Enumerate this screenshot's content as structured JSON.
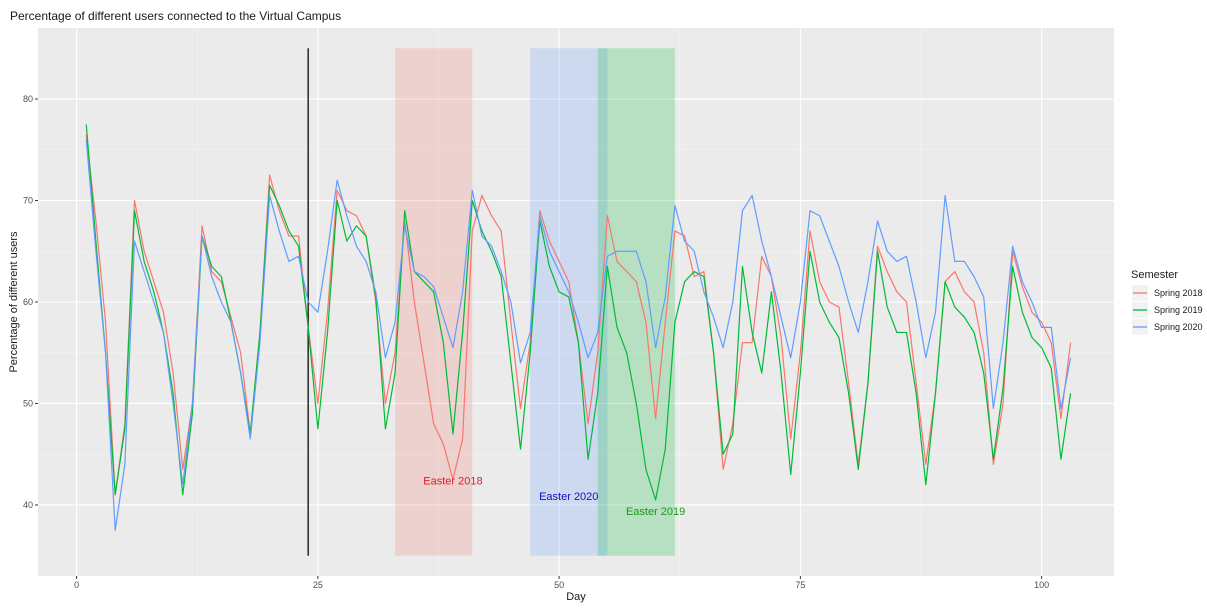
{
  "chart_data": {
    "type": "line",
    "title": "Percentage of different users connected to the Virtual Campus",
    "xlabel": "Day",
    "ylabel": "Percentage of different users",
    "xlim": [
      -4,
      107.5
    ],
    "ylim": [
      33,
      87
    ],
    "x_ticks": [
      0,
      25,
      50,
      75,
      100
    ],
    "y_ticks": [
      40,
      50,
      60,
      70,
      80
    ],
    "grid": true,
    "legend_position": "right",
    "legend_title": "Semester",
    "vline": {
      "x": 24,
      "y_range": [
        35,
        85
      ],
      "color": "#333333"
    },
    "shaded_regions": [
      {
        "x_range": [
          33,
          41
        ],
        "y_range": [
          35,
          85
        ],
        "color": "#F8766D",
        "label": "Easter 2018",
        "label_x": 39,
        "label_y": 42
      },
      {
        "x_range": [
          47,
          55
        ],
        "y_range": [
          35,
          85
        ],
        "color": "#619CFF",
        "label": "Easter 2020",
        "label_x": 51,
        "label_y": 40.5
      },
      {
        "x_range": [
          54,
          62
        ],
        "y_range": [
          35,
          85
        ],
        "color": "#00BA38",
        "label": "Easter 2019",
        "label_x": 60,
        "label_y": 39
      }
    ],
    "annotation_colors": {
      "Easter 2018": "#E41A1C",
      "Easter 2020": "#1010CC",
      "Easter 2019": "#1A9A1A"
    },
    "series": [
      {
        "name": "Spring 2018",
        "color": "#F8766D",
        "points": [
          [
            1,
            76.5
          ],
          [
            2,
            68
          ],
          [
            3,
            58
          ],
          [
            4,
            41
          ],
          [
            5,
            48
          ],
          [
            6,
            70
          ],
          [
            7,
            65
          ],
          [
            8,
            62
          ],
          [
            9,
            59
          ],
          [
            10,
            53
          ],
          [
            11,
            43.5
          ],
          [
            12,
            50
          ],
          [
            13,
            67.5
          ],
          [
            14,
            63
          ],
          [
            15,
            62
          ],
          [
            16,
            58.5
          ],
          [
            17,
            55
          ],
          [
            18,
            47
          ],
          [
            19,
            57
          ],
          [
            20,
            72.5
          ],
          [
            21,
            69
          ],
          [
            22,
            66.5
          ],
          [
            23,
            66.5
          ],
          [
            24,
            57.5
          ],
          [
            25,
            50
          ],
          [
            26,
            59
          ],
          [
            27,
            71
          ],
          [
            28,
            69
          ],
          [
            29,
            68.5
          ],
          [
            30,
            66.5
          ],
          [
            31,
            60
          ],
          [
            32,
            50
          ],
          [
            33,
            55
          ],
          [
            34,
            68
          ],
          [
            35,
            60
          ],
          [
            36,
            54
          ],
          [
            37,
            48
          ],
          [
            38,
            46
          ],
          [
            39,
            42.5
          ],
          [
            40,
            46.5
          ],
          [
            41,
            67
          ],
          [
            42,
            70.5
          ],
          [
            43,
            68.5
          ],
          [
            44,
            67
          ],
          [
            45,
            58
          ],
          [
            46,
            49.5
          ],
          [
            47,
            56
          ],
          [
            48,
            69
          ],
          [
            49,
            66
          ],
          [
            50,
            64
          ],
          [
            51,
            62
          ],
          [
            52,
            56
          ],
          [
            53,
            48
          ],
          [
            54,
            55
          ],
          [
            55,
            68.5
          ],
          [
            56,
            64
          ],
          [
            57,
            63
          ],
          [
            58,
            62
          ],
          [
            59,
            58
          ],
          [
            60,
            48.5
          ],
          [
            61,
            58
          ],
          [
            62,
            67
          ],
          [
            63,
            66.5
          ],
          [
            64,
            62.5
          ],
          [
            65,
            63
          ],
          [
            66,
            55
          ],
          [
            67,
            43.5
          ],
          [
            68,
            48
          ],
          [
            69,
            56
          ],
          [
            70,
            56
          ],
          [
            71,
            64.5
          ],
          [
            72,
            62.5
          ],
          [
            73,
            56.5
          ],
          [
            74,
            46.5
          ],
          [
            75,
            55
          ],
          [
            76,
            67
          ],
          [
            77,
            62
          ],
          [
            78,
            60
          ],
          [
            79,
            59.5
          ],
          [
            80,
            52
          ],
          [
            81,
            44
          ],
          [
            82,
            52
          ],
          [
            83,
            65.5
          ],
          [
            84,
            63
          ],
          [
            85,
            61
          ],
          [
            86,
            60
          ],
          [
            87,
            52
          ],
          [
            88,
            44
          ],
          [
            89,
            51
          ],
          [
            90,
            62
          ],
          [
            91,
            63
          ],
          [
            92,
            61
          ],
          [
            93,
            60
          ],
          [
            94,
            55
          ],
          [
            95,
            44
          ],
          [
            96,
            50
          ],
          [
            97,
            65
          ],
          [
            98,
            61.5
          ],
          [
            99,
            59
          ],
          [
            100,
            58
          ],
          [
            101,
            56
          ],
          [
            102,
            48.5
          ],
          [
            103,
            56
          ]
        ]
      },
      {
        "name": "Spring 2019",
        "color": "#00BA38",
        "points": [
          [
            1,
            77.5
          ],
          [
            2,
            66
          ],
          [
            3,
            55
          ],
          [
            4,
            41
          ],
          [
            5,
            47.5
          ],
          [
            6,
            69
          ],
          [
            7,
            64
          ],
          [
            8,
            61
          ],
          [
            9,
            57
          ],
          [
            10,
            51
          ],
          [
            11,
            41
          ],
          [
            12,
            49
          ],
          [
            13,
            66.5
          ],
          [
            14,
            63.5
          ],
          [
            15,
            62.5
          ],
          [
            16,
            58
          ],
          [
            17,
            53
          ],
          [
            18,
            47
          ],
          [
            19,
            57
          ],
          [
            20,
            71.5
          ],
          [
            21,
            69.5
          ],
          [
            22,
            67
          ],
          [
            23,
            65.5
          ],
          [
            24,
            57.5
          ],
          [
            25,
            47.5
          ],
          [
            26,
            57
          ],
          [
            27,
            70
          ],
          [
            28,
            66
          ],
          [
            29,
            67.5
          ],
          [
            30,
            66.5
          ],
          [
            31,
            60.5
          ],
          [
            32,
            47.5
          ],
          [
            33,
            53
          ],
          [
            34,
            69
          ],
          [
            35,
            63
          ],
          [
            36,
            62
          ],
          [
            37,
            61
          ],
          [
            38,
            56
          ],
          [
            39,
            47
          ],
          [
            40,
            57
          ],
          [
            41,
            70
          ],
          [
            42,
            67
          ],
          [
            43,
            65
          ],
          [
            44,
            62.5
          ],
          [
            45,
            54
          ],
          [
            46,
            45.5
          ],
          [
            47,
            55
          ],
          [
            48,
            68
          ],
          [
            49,
            63.5
          ],
          [
            50,
            61
          ],
          [
            51,
            60.5
          ],
          [
            52,
            56
          ],
          [
            53,
            44.5
          ],
          [
            54,
            51
          ],
          [
            55,
            63.5
          ],
          [
            56,
            57.5
          ],
          [
            57,
            55
          ],
          [
            58,
            50
          ],
          [
            59,
            43.5
          ],
          [
            60,
            40.5
          ],
          [
            61,
            45.5
          ],
          [
            62,
            58
          ],
          [
            63,
            62
          ],
          [
            64,
            63
          ],
          [
            65,
            62.5
          ],
          [
            66,
            55
          ],
          [
            67,
            45
          ],
          [
            68,
            47
          ],
          [
            69,
            63.5
          ],
          [
            70,
            57
          ],
          [
            71,
            53
          ],
          [
            72,
            61
          ],
          [
            73,
            53
          ],
          [
            74,
            43
          ],
          [
            75,
            53
          ],
          [
            76,
            65
          ],
          [
            77,
            60
          ],
          [
            78,
            58
          ],
          [
            79,
            56.5
          ],
          [
            80,
            51
          ],
          [
            81,
            43.5
          ],
          [
            82,
            52
          ],
          [
            83,
            65
          ],
          [
            84,
            59.5
          ],
          [
            85,
            57
          ],
          [
            86,
            57
          ],
          [
            87,
            51
          ],
          [
            88,
            42
          ],
          [
            89,
            51
          ],
          [
            90,
            62
          ],
          [
            91,
            59.5
          ],
          [
            92,
            58.5
          ],
          [
            93,
            57
          ],
          [
            94,
            53
          ],
          [
            95,
            44.5
          ],
          [
            96,
            51.5
          ],
          [
            97,
            63.5
          ],
          [
            98,
            59
          ],
          [
            99,
            56.5
          ],
          [
            100,
            55.5
          ],
          [
            101,
            53.5
          ],
          [
            102,
            44.5
          ],
          [
            103,
            51
          ]
        ]
      },
      {
        "name": "Spring 2020",
        "color": "#619CFF",
        "points": [
          [
            1,
            76
          ],
          [
            2,
            65
          ],
          [
            3,
            55
          ],
          [
            4,
            37.5
          ],
          [
            5,
            44
          ],
          [
            6,
            66
          ],
          [
            7,
            63
          ],
          [
            8,
            60
          ],
          [
            9,
            57
          ],
          [
            10,
            50
          ],
          [
            11,
            42
          ],
          [
            12,
            50
          ],
          [
            13,
            66.5
          ],
          [
            14,
            62.5
          ],
          [
            15,
            60
          ],
          [
            16,
            58
          ],
          [
            17,
            53
          ],
          [
            18,
            46.5
          ],
          [
            19,
            56
          ],
          [
            20,
            70.5
          ],
          [
            21,
            67
          ],
          [
            22,
            64
          ],
          [
            23,
            64.5
          ],
          [
            24,
            60
          ],
          [
            25,
            59
          ],
          [
            26,
            65
          ],
          [
            27,
            72
          ],
          [
            28,
            68.5
          ],
          [
            29,
            65.5
          ],
          [
            30,
            64
          ],
          [
            31,
            61
          ],
          [
            32,
            54.5
          ],
          [
            33,
            58
          ],
          [
            34,
            67.5
          ],
          [
            35,
            63
          ],
          [
            36,
            62.5
          ],
          [
            37,
            61.5
          ],
          [
            38,
            58.5
          ],
          [
            39,
            55.5
          ],
          [
            40,
            61
          ],
          [
            41,
            71
          ],
          [
            42,
            66.5
          ],
          [
            43,
            65.5
          ],
          [
            44,
            63
          ],
          [
            45,
            60
          ],
          [
            46,
            54
          ],
          [
            47,
            57
          ],
          [
            48,
            68.5
          ],
          [
            49,
            65
          ],
          [
            50,
            63
          ],
          [
            51,
            61
          ],
          [
            52,
            58
          ],
          [
            53,
            54.5
          ],
          [
            54,
            57
          ],
          [
            55,
            64.5
          ],
          [
            56,
            65
          ],
          [
            57,
            65
          ],
          [
            58,
            65
          ],
          [
            59,
            62
          ],
          [
            60,
            55.5
          ],
          [
            61,
            60.5
          ],
          [
            62,
            69.5
          ],
          [
            63,
            66
          ],
          [
            64,
            65
          ],
          [
            65,
            61
          ],
          [
            66,
            58.5
          ],
          [
            67,
            55.5
          ],
          [
            68,
            60
          ],
          [
            69,
            69
          ],
          [
            70,
            70.5
          ],
          [
            71,
            66
          ],
          [
            72,
            62.5
          ],
          [
            73,
            58.5
          ],
          [
            74,
            54.5
          ],
          [
            75,
            60
          ],
          [
            76,
            69
          ],
          [
            77,
            68.5
          ],
          [
            78,
            66
          ],
          [
            79,
            63.5
          ],
          [
            80,
            60
          ],
          [
            81,
            57
          ],
          [
            82,
            62
          ],
          [
            83,
            68
          ],
          [
            84,
            65
          ],
          [
            85,
            64
          ],
          [
            86,
            64.5
          ],
          [
            87,
            60
          ],
          [
            88,
            54.5
          ],
          [
            89,
            59
          ],
          [
            90,
            70.5
          ],
          [
            91,
            64
          ],
          [
            92,
            64
          ],
          [
            93,
            62.5
          ],
          [
            94,
            60.5
          ],
          [
            95,
            49.5
          ],
          [
            96,
            56
          ],
          [
            97,
            65.5
          ],
          [
            98,
            62
          ],
          [
            99,
            60
          ],
          [
            100,
            57.5
          ],
          [
            101,
            57.5
          ],
          [
            102,
            49.5
          ],
          [
            103,
            54.5
          ]
        ]
      }
    ]
  }
}
